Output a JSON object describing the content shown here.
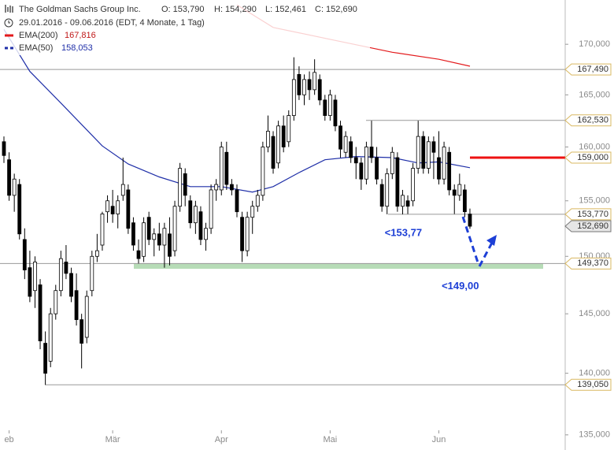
{
  "header": {
    "title": "The Goldman Sachs Group Inc.",
    "open": "O: 153,790",
    "high": "H: 154,290",
    "low": "L: 152,461",
    "close": "C: 152,690",
    "range": "29.01.2016 - 09.06.2016 (EDT, 4 Monate, 1 Tag)"
  },
  "chart_data": {
    "type": "candlestick",
    "log_scale": true,
    "grid": false,
    "open": [
      160.5,
      158.8,
      155.5,
      156.5,
      151.5,
      149.0,
      147.0,
      147.5,
      142.5,
      141.0,
      145.0,
      147.0,
      149.5,
      148.5,
      147.0,
      144.5,
      143.0,
      147.0,
      150.0,
      151.0,
      154.0,
      154.5,
      153.8,
      155.5,
      156.0,
      153.0,
      150.5,
      150.0,
      153.5,
      151.5,
      152.0,
      151.0,
      152.0,
      150.5,
      154.5,
      157.5,
      155.0,
      153.0,
      154.0,
      151.5,
      152.5,
      156.0,
      156.0,
      159.5,
      156.5,
      156.0,
      153.5,
      150.5,
      153.5,
      154.5,
      155.5,
      160.0,
      161.0,
      158.5,
      162.0,
      160.5,
      163.0,
      167.0,
      165.0,
      166.5,
      165.5,
      166.5,
      164.5,
      163.0,
      164.5,
      162.0,
      159.5,
      160.5,
      159.0,
      158.5,
      157.0,
      160.0,
      159.0,
      156.5,
      154.5,
      157.5,
      159.0,
      154.5,
      155.0,
      155.0,
      158.0,
      161.0,
      158.0,
      160.5,
      159.0,
      157.0,
      159.5,
      156.0,
      155.5,
      156.0,
      153.79
    ],
    "high": [
      161.0,
      159.5,
      157.5,
      157.0,
      152.5,
      150.5,
      150.0,
      148.0,
      143.5,
      145.5,
      147.5,
      150.5,
      151.0,
      149.0,
      148.5,
      145.0,
      147.0,
      150.5,
      152.0,
      154.0,
      155.5,
      156.0,
      155.5,
      159.0,
      156.5,
      153.5,
      151.5,
      153.5,
      154.0,
      152.5,
      153.0,
      153.0,
      153.5,
      155.0,
      158.5,
      158.0,
      155.5,
      155.0,
      154.5,
      153.0,
      156.5,
      157.0,
      160.5,
      160.5,
      157.0,
      156.5,
      154.0,
      154.0,
      155.0,
      156.0,
      160.5,
      163.0,
      161.5,
      162.5,
      163.0,
      163.5,
      168.7,
      167.8,
      167.0,
      167.3,
      168.5,
      167.0,
      165.0,
      165.5,
      165.0,
      162.5,
      161.5,
      161.0,
      160.0,
      159.0,
      160.5,
      162.5,
      160.0,
      157.0,
      158.0,
      160.0,
      159.5,
      156.0,
      155.5,
      158.5,
      162.5,
      161.5,
      161.0,
      161.0,
      161.5,
      160.5,
      160.0,
      156.5,
      157.5,
      156.5,
      154.29
    ],
    "low": [
      158.5,
      155.0,
      154.0,
      151.5,
      148.0,
      146.0,
      145.5,
      142.0,
      139.05,
      140.5,
      144.5,
      146.5,
      148.0,
      146.0,
      144.0,
      140.4,
      142.5,
      146.5,
      149.5,
      150.5,
      153.0,
      153.0,
      152.5,
      155.0,
      152.0,
      150.5,
      149.37,
      149.5,
      151.0,
      150.0,
      150.5,
      149.0,
      149.2,
      150.0,
      154.0,
      154.5,
      152.5,
      152.0,
      151.0,
      150.5,
      152.0,
      155.0,
      155.5,
      156.0,
      155.5,
      153.5,
      149.5,
      150.0,
      152.0,
      154.0,
      155.0,
      159.5,
      157.5,
      158.0,
      159.5,
      160.0,
      162.5,
      164.5,
      164.0,
      164.5,
      165.0,
      164.0,
      162.5,
      162.5,
      161.5,
      159.0,
      159.0,
      158.5,
      157.0,
      156.0,
      156.5,
      158.5,
      156.5,
      154.0,
      153.77,
      157.0,
      154.0,
      153.77,
      153.8,
      154.5,
      157.5,
      157.5,
      157.5,
      157.0,
      156.5,
      156.5,
      155.5,
      153.8,
      155.0,
      153.5,
      152.461
    ],
    "close": [
      159.2,
      155.5,
      157.0,
      152.0,
      148.8,
      146.5,
      149.5,
      142.7,
      140.0,
      145.0,
      147.0,
      149.8,
      148.5,
      146.5,
      144.5,
      142.5,
      146.5,
      150.0,
      150.5,
      153.8,
      155.0,
      153.8,
      155.0,
      156.5,
      152.5,
      151.0,
      149.8,
      153.0,
      151.5,
      152.0,
      151.0,
      152.5,
      150.0,
      154.5,
      158.0,
      155.5,
      153.0,
      154.5,
      151.5,
      152.5,
      156.0,
      156.5,
      160.0,
      156.5,
      156.0,
      154.0,
      150.5,
      153.5,
      154.5,
      155.5,
      160.0,
      161.5,
      158.0,
      162.0,
      160.0,
      163.0,
      166.5,
      165.0,
      166.5,
      165.5,
      167.2,
      164.5,
      163.0,
      165.0,
      162.0,
      159.8,
      161.0,
      159.0,
      158.5,
      157.0,
      160.0,
      159.0,
      157.0,
      154.5,
      157.5,
      159.5,
      154.5,
      155.5,
      154.5,
      158.0,
      161.0,
      158.0,
      160.5,
      159.5,
      157.0,
      160.0,
      156.0,
      155.5,
      156.5,
      154.0,
      152.69
    ],
    "series": [
      {
        "name": "EMA(200)",
        "color": "#e31a1c",
        "last_label": "167,816",
        "x": [
          45,
          52,
          63,
          75,
          84,
          90
        ],
        "values": [
          174.0,
          171.7,
          170.5,
          169.2,
          168.5,
          167.816
        ]
      },
      {
        "name": "EMA(50)",
        "color": "#1f2fa8",
        "last_label": "158,053",
        "x": [
          0,
          5,
          11,
          19,
          24,
          30,
          36,
          42,
          48,
          52,
          57,
          62,
          68,
          75,
          80,
          84,
          90
        ],
        "values": [
          171.5,
          167.3,
          164.2,
          160.1,
          158.4,
          157.2,
          156.3,
          156.3,
          155.8,
          156.3,
          157.6,
          158.8,
          159.1,
          159.0,
          158.5,
          158.6,
          158.053
        ]
      }
    ],
    "levels": {
      "values": [
        167.49,
        162.53,
        159.0,
        153.77,
        152.69,
        149.37,
        139.05
      ],
      "value_labels": [
        "167,490",
        "162,530",
        "159,000",
        "153,770",
        "152,690",
        "149,370",
        "139,050"
      ]
    },
    "zone": [
      148.9,
      149.37
    ],
    "annotations": [
      {
        "text": "<153,77",
        "x": 74,
        "y": 153.77
      },
      {
        "text": "<149,00",
        "x": 85,
        "y": 149.0
      }
    ],
    "xlim": [
      -0.76,
      108.4
    ],
    "xticks": [
      {
        "value": 1,
        "label": "eb"
      },
      {
        "value": 21,
        "label": "Mär"
      },
      {
        "value": 42,
        "label": "Apr"
      },
      {
        "value": 63,
        "label": "Mai"
      },
      {
        "value": 84,
        "label": "Jun"
      }
    ],
    "ylim": [
      133.8,
      174.5
    ],
    "yticks": [
      {
        "value": 135,
        "label": "135,000"
      },
      {
        "value": 140,
        "label": "140,000"
      },
      {
        "value": 145,
        "label": "145,000"
      },
      {
        "value": 150,
        "label": "150,000"
      },
      {
        "value": 155,
        "label": "155,000"
      },
      {
        "value": 160,
        "label": "160,000"
      },
      {
        "value": 165,
        "label": "165,000"
      },
      {
        "value": 170,
        "label": "170,000"
      }
    ]
  }
}
